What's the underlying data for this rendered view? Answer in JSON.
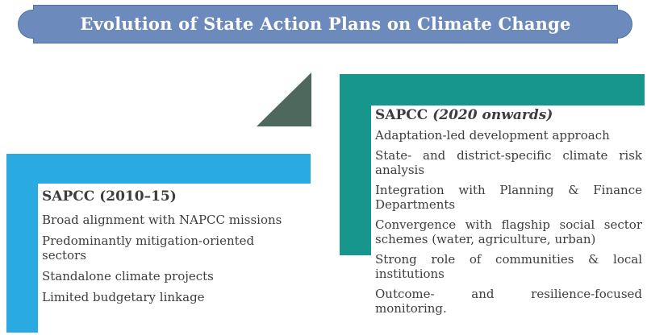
{
  "banner": {
    "title": "Evolution of State Action Plans on Climate Change"
  },
  "left_box": {
    "heading": "SAPCC (2010–15)",
    "items": [
      "Broad alignment with NAPCC missions",
      "Predominantly mitigation-oriented sectors",
      "Standalone climate projects",
      "Limited budgetary linkage"
    ]
  },
  "right_box": {
    "heading_name": "SAPCC",
    "heading_period": "(2020 onwards)",
    "items": [
      "Adaptation-led development approach",
      "State- and district-specific climate risk analysis",
      "Integration with Planning & Finance Departments",
      "Convergence with flagship social sector schemes (water, agriculture, urban)",
      "Strong role of communities & local institutions",
      "Outcome- and resilience-focused monitoring."
    ]
  },
  "colors": {
    "banner_fill": "#6D8ABC",
    "banner_border": "#4C71A6",
    "title_text": "#FFFFFF",
    "left_box_fill": "#29ABE2",
    "right_box_fill": "#17968D",
    "triangle_fill": "#4E685D",
    "body_text": "#3D3D3D"
  }
}
